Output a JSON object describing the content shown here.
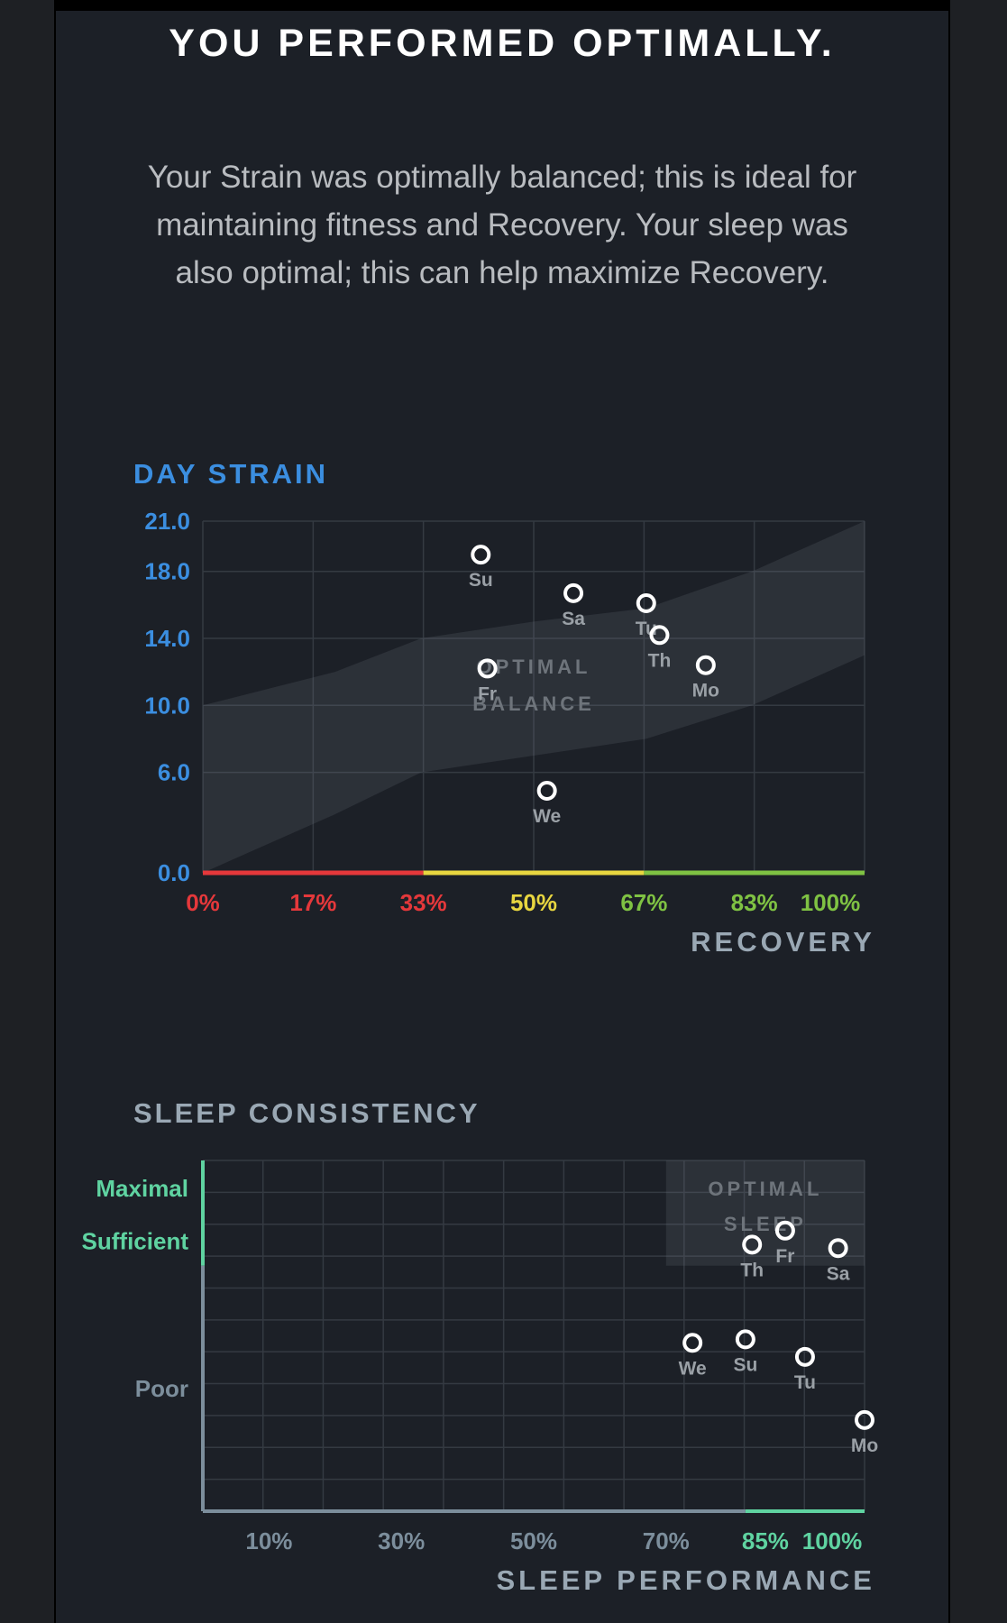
{
  "headline": "YOU PERFORMED OPTIMALLY.",
  "summary": "Your Strain was optimally balanced; this is ideal for maintaining fitness and Recovery. Your sleep was also optimal; this can help maximize Recovery.",
  "colors": {
    "background": "#1c2027",
    "strain_blue": "#3b8ee0",
    "recovery_red": "#e5383b",
    "recovery_yellow": "#e8d640",
    "recovery_green": "#7fc243",
    "sleep_green": "#5fd3a1",
    "axis_slate": "#7c8e9c"
  },
  "chart_data": [
    {
      "type": "scatter",
      "title": "DAY STRAIN",
      "xlabel": "RECOVERY",
      "ylabel": "DAY STRAIN",
      "xlim": [
        0,
        100
      ],
      "ylim": [
        0,
        21
      ],
      "x_ticks": [
        "0%",
        "17%",
        "33%",
        "50%",
        "67%",
        "83%",
        "100%"
      ],
      "x_tick_values": [
        0,
        17,
        33,
        50,
        67,
        83,
        100
      ],
      "x_tick_colors": [
        "#e5383b",
        "#e5383b",
        "#e5383b",
        "#e8d640",
        "#7fc243",
        "#7fc243",
        "#7fc243"
      ],
      "y_ticks": [
        "0.0",
        "6.0",
        "10.0",
        "14.0",
        "18.0",
        "21.0"
      ],
      "y_tick_values": [
        0,
        6,
        10,
        14,
        18,
        21
      ],
      "band_label_lines": [
        "OPTIMAL",
        "BALANCE"
      ],
      "band": {
        "lower": [
          [
            0,
            0
          ],
          [
            20,
            3.5
          ],
          [
            33,
            6
          ],
          [
            50,
            7
          ],
          [
            67,
            8
          ],
          [
            83,
            10
          ],
          [
            100,
            13
          ]
        ],
        "upper": [
          [
            0,
            10
          ],
          [
            20,
            12
          ],
          [
            33,
            14
          ],
          [
            50,
            15
          ],
          [
            67,
            15.8
          ],
          [
            83,
            18
          ],
          [
            100,
            21
          ]
        ]
      },
      "points": [
        {
          "label": "Su",
          "x": 42,
          "y": 19.0
        },
        {
          "label": "Sa",
          "x": 56,
          "y": 16.7
        },
        {
          "label": "Tu",
          "x": 67,
          "y": 16.1
        },
        {
          "label": "Th",
          "x": 69,
          "y": 14.2
        },
        {
          "label": "Fr",
          "x": 43,
          "y": 12.2
        },
        {
          "label": "Mo",
          "x": 76,
          "y": 12.4
        },
        {
          "label": "We",
          "x": 52,
          "y": 4.9
        }
      ],
      "grid": true
    },
    {
      "type": "scatter",
      "title": "SLEEP CONSISTENCY",
      "xlabel": "SLEEP PERFORMANCE",
      "ylabel": "SLEEP CONSISTENCY",
      "xlim": [
        0,
        100
      ],
      "ylim": [
        0,
        100
      ],
      "x_ticks": [
        "10%",
        "30%",
        "50%",
        "70%",
        "85%",
        "100%"
      ],
      "x_tick_values": [
        10,
        30,
        50,
        70,
        85,
        100
      ],
      "x_tick_colors": [
        "#7c8e9c",
        "#7c8e9c",
        "#7c8e9c",
        "#7c8e9c",
        "#5fd3a1",
        "#5fd3a1"
      ],
      "y_ticks": [
        "Maximal",
        "Sufficient",
        "Poor"
      ],
      "y_tick_values": [
        92,
        77,
        35
      ],
      "y_tick_colors": [
        "#5fd3a1",
        "#5fd3a1",
        "#7c8e9c"
      ],
      "band_label_lines": [
        "OPTIMAL",
        "SLEEP"
      ],
      "band": {
        "x_min": 70,
        "x_max": 100,
        "y_min": 70,
        "y_max": 100
      },
      "points": [
        {
          "label": "Fr",
          "x": 88,
          "y": 80
        },
        {
          "label": "Th",
          "x": 83,
          "y": 76
        },
        {
          "label": "Sa",
          "x": 96,
          "y": 75
        },
        {
          "label": "We",
          "x": 74,
          "y": 48
        },
        {
          "label": "Su",
          "x": 82,
          "y": 49
        },
        {
          "label": "Tu",
          "x": 91,
          "y": 44
        },
        {
          "label": "Mo",
          "x": 100,
          "y": 26
        }
      ],
      "grid": true
    }
  ]
}
